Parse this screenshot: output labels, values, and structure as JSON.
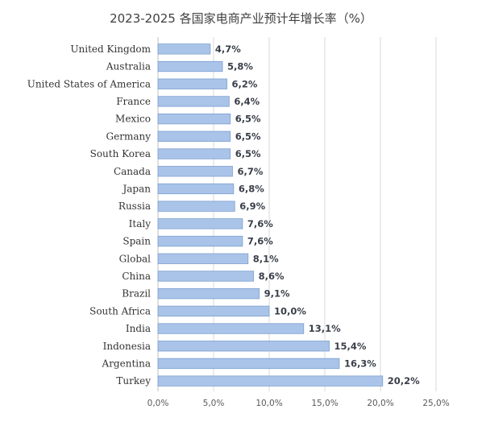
{
  "chart_data": {
    "type": "bar",
    "orientation": "horizontal",
    "title": "2023-2025 各国家电商产业预计年增长率（%）",
    "categories": [
      "United Kingdom",
      "Australia",
      "United States of America",
      "France",
      "Mexico",
      "Germany",
      "South Korea",
      "Canada",
      "Japan",
      "Russia",
      "Italy",
      "Spain",
      "Global",
      "China",
      "Brazil",
      "South Africa",
      "India",
      "Indonesia",
      "Argentina",
      "Turkey"
    ],
    "values": [
      4.7,
      5.8,
      6.2,
      6.4,
      6.5,
      6.5,
      6.5,
      6.7,
      6.8,
      6.9,
      7.6,
      7.6,
      8.1,
      8.6,
      9.1,
      10.0,
      13.1,
      15.4,
      16.3,
      20.2
    ],
    "value_labels": [
      "4,7%",
      "5,8%",
      "6,2%",
      "6,4%",
      "6,5%",
      "6,5%",
      "6,5%",
      "6,7%",
      "6,8%",
      "6,9%",
      "7,6%",
      "7,6%",
      "8,1%",
      "8,6%",
      "9,1%",
      "10,0%",
      "13,1%",
      "15,4%",
      "16,3%",
      "20,2%"
    ],
    "xticks": [
      0,
      5,
      10,
      15,
      20,
      25
    ],
    "xtick_labels": [
      "0,0%",
      "5,0%",
      "10,0%",
      "15,0%",
      "20,0%",
      "25,0%"
    ],
    "xlim": [
      0,
      25
    ],
    "xlabel": "",
    "ylabel": "",
    "grid": "vertical",
    "legend": "none",
    "colors": {
      "bar_fill": "#a9c4e8",
      "bar_edge": "#7d9fd0",
      "grid": "#d9d9d9"
    }
  }
}
